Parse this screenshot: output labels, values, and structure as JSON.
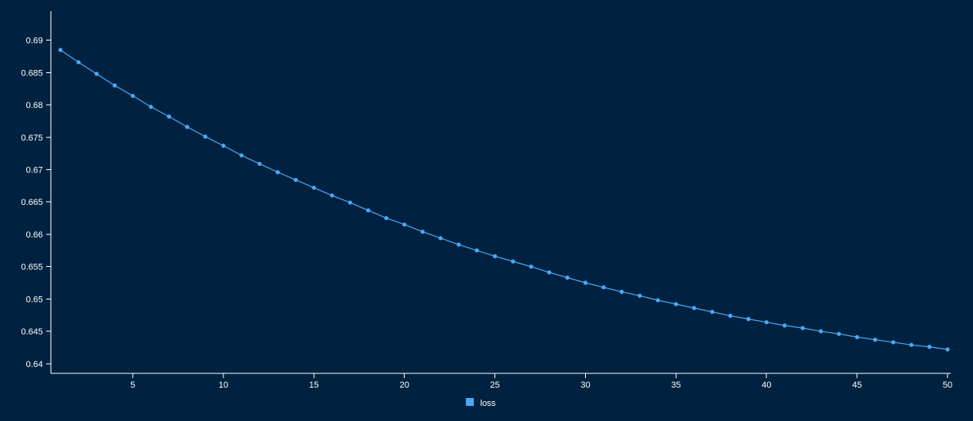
{
  "background_color": "#002240",
  "axis_color": "#ffffff",
  "chart_data": {
    "type": "line",
    "title": "",
    "xlabel": "",
    "ylabel": "",
    "xlim": [
      1,
      50
    ],
    "ylim": [
      0.6385,
      0.6945
    ],
    "x_ticks": [
      5,
      10,
      15,
      20,
      25,
      30,
      35,
      40,
      45,
      50
    ],
    "y_ticks": [
      "0.64",
      "0.645",
      "0.65",
      "0.655",
      "0.66",
      "0.665",
      "0.67",
      "0.675",
      "0.68",
      "0.685",
      "0.69"
    ],
    "grid": false,
    "legend_position": "bottom-center",
    "x": [
      1,
      2,
      3,
      4,
      5,
      6,
      7,
      8,
      9,
      10,
      11,
      12,
      13,
      14,
      15,
      16,
      17,
      18,
      19,
      20,
      21,
      22,
      23,
      24,
      25,
      26,
      27,
      28,
      29,
      30,
      31,
      32,
      33,
      34,
      35,
      36,
      37,
      38,
      39,
      40,
      41,
      42,
      43,
      44,
      45,
      46,
      47,
      48,
      49,
      50
    ],
    "series": [
      {
        "name": "loss",
        "color": "#4aa8f5",
        "values": [
          0.6885,
          0.6866,
          0.6848,
          0.683,
          0.6814,
          0.6797,
          0.6782,
          0.6766,
          0.6751,
          0.6737,
          0.6722,
          0.6709,
          0.6696,
          0.6684,
          0.6672,
          0.666,
          0.6649,
          0.6637,
          0.6625,
          0.6615,
          0.6604,
          0.6594,
          0.6584,
          0.6575,
          0.6566,
          0.6558,
          0.655,
          0.6541,
          0.6533,
          0.6525,
          0.6518,
          0.6511,
          0.6505,
          0.6498,
          0.6492,
          0.6486,
          0.648,
          0.6474,
          0.6469,
          0.6464,
          0.6459,
          0.6455,
          0.645,
          0.6446,
          0.6441,
          0.6437,
          0.6433,
          0.6429,
          0.6426,
          0.6422
        ]
      }
    ]
  }
}
